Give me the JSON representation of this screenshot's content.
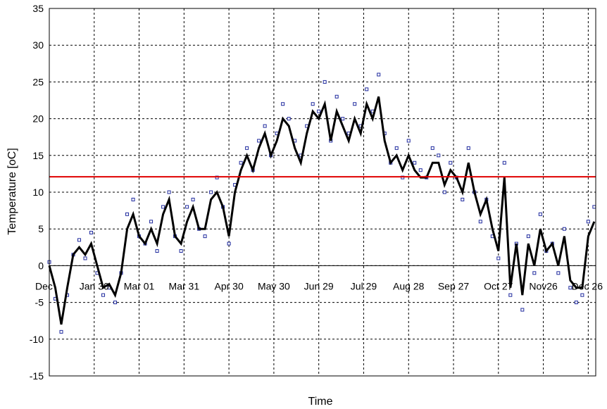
{
  "chart_data": {
    "type": "scatter",
    "title": "",
    "xlabel": "Time",
    "ylabel": "Temperature [oC]",
    "xlim": [
      0,
      365
    ],
    "ylim": [
      -15,
      35
    ],
    "yticks": [
      35,
      30,
      25,
      20,
      15,
      10,
      5,
      0,
      -5,
      -10,
      -15
    ],
    "xtick_labels": [
      "Dec",
      "Jan 30",
      "Mar 01",
      "Mar 31",
      "Apr 30",
      "May 30",
      "Jun 29",
      "Jul 29",
      "Aug 28",
      "Sep 27",
      "Oct 27",
      "Nov26",
      "Dec 26"
    ],
    "xtick_positions": [
      0,
      30,
      60,
      90,
      120,
      150,
      180,
      210,
      240,
      270,
      300,
      330,
      360
    ],
    "grid": true,
    "reference_line": {
      "y": 12.1,
      "color": "#e00000"
    },
    "colors": {
      "points": "#1f2a9e",
      "trend": "#000000",
      "reference": "#e00000"
    },
    "series": [
      {
        "style": "points",
        "x": [
          0,
          4,
          8,
          12,
          16,
          20,
          24,
          28,
          32,
          36,
          40,
          44,
          48,
          52,
          56,
          60,
          64,
          68,
          72,
          76,
          80,
          84,
          88,
          92,
          96,
          100,
          104,
          108,
          112,
          116,
          120,
          124,
          128,
          132,
          136,
          140,
          144,
          148,
          152,
          156,
          160,
          164,
          168,
          172,
          176,
          180,
          184,
          188,
          192,
          196,
          200,
          204,
          208,
          212,
          216,
          220,
          224,
          228,
          232,
          236,
          240,
          244,
          248,
          252,
          256,
          260,
          264,
          268,
          272,
          276,
          280,
          284,
          288,
          292,
          296,
          300,
          304,
          308,
          312,
          316,
          320,
          324,
          328,
          332,
          336,
          340,
          344,
          348,
          352,
          356,
          360,
          364
        ],
        "y": [
          0.5,
          -4.5,
          -9,
          -4,
          1.5,
          3.5,
          1,
          4.5,
          -1,
          -4,
          -3,
          -5,
          -1,
          7,
          9,
          4,
          3,
          6,
          2,
          8,
          10,
          4,
          2,
          8,
          9,
          5,
          4,
          10,
          12,
          8,
          3,
          11,
          14,
          16,
          13,
          17,
          19,
          15,
          18,
          22,
          20,
          17,
          15,
          19,
          22,
          21,
          25,
          17,
          23,
          20,
          18,
          22,
          19,
          24,
          21,
          26,
          18,
          14,
          16,
          12,
          17,
          14,
          13,
          12,
          16,
          15,
          10,
          14,
          12,
          9,
          16,
          10,
          6,
          9,
          4,
          1,
          14,
          -4,
          3,
          -6,
          4,
          -1,
          7,
          2,
          3,
          -1,
          5,
          -3,
          -5,
          -4,
          6,
          8
        ]
      },
      {
        "style": "line",
        "x": [
          0,
          4,
          8,
          12,
          16,
          20,
          24,
          28,
          32,
          36,
          40,
          44,
          48,
          52,
          56,
          60,
          64,
          68,
          72,
          76,
          80,
          84,
          88,
          92,
          96,
          100,
          104,
          108,
          112,
          116,
          120,
          124,
          128,
          132,
          136,
          140,
          144,
          148,
          152,
          156,
          160,
          164,
          168,
          172,
          176,
          180,
          184,
          188,
          192,
          196,
          200,
          204,
          208,
          212,
          216,
          220,
          224,
          228,
          232,
          236,
          240,
          244,
          248,
          252,
          256,
          260,
          264,
          268,
          272,
          276,
          280,
          284,
          288,
          292,
          296,
          300,
          304,
          308,
          312,
          316,
          320,
          324,
          328,
          332,
          336,
          340,
          344,
          348,
          352,
          356,
          360,
          364
        ],
        "y": [
          0,
          -3,
          -8,
          -3,
          1.5,
          2.5,
          1.5,
          3,
          0,
          -3,
          -2.5,
          -4,
          -1,
          5,
          7,
          4,
          3,
          5,
          3,
          7,
          9,
          4,
          3,
          6,
          8,
          5,
          5,
          9,
          10,
          8,
          4,
          10,
          13,
          15,
          13,
          16,
          18,
          15,
          17,
          20,
          19,
          16,
          14,
          18,
          21,
          20,
          22,
          17,
          21,
          19,
          17,
          20,
          18,
          22,
          20,
          23,
          17,
          14,
          15,
          13,
          15,
          13,
          12,
          12,
          14,
          14,
          11,
          13,
          12,
          10,
          14,
          10,
          7,
          9,
          5,
          2,
          12,
          -3,
          3,
          -4,
          3,
          0,
          5,
          2,
          3,
          0,
          4,
          -2,
          -3,
          -3,
          4,
          6
        ]
      }
    ]
  }
}
